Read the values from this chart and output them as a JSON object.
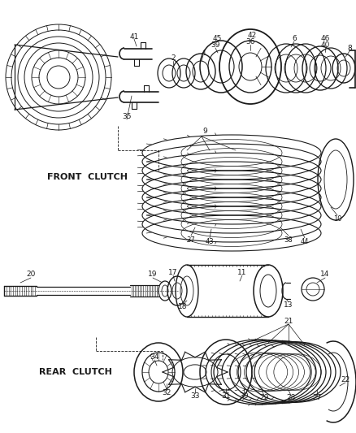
{
  "bg_color": "#ffffff",
  "line_color": "#1a1a1a",
  "front_clutch_label": "FRONT  CLUTCH",
  "rear_clutch_label": "REAR  CLUTCH",
  "figsize": [
    4.38,
    5.33
  ],
  "dpi": 100
}
